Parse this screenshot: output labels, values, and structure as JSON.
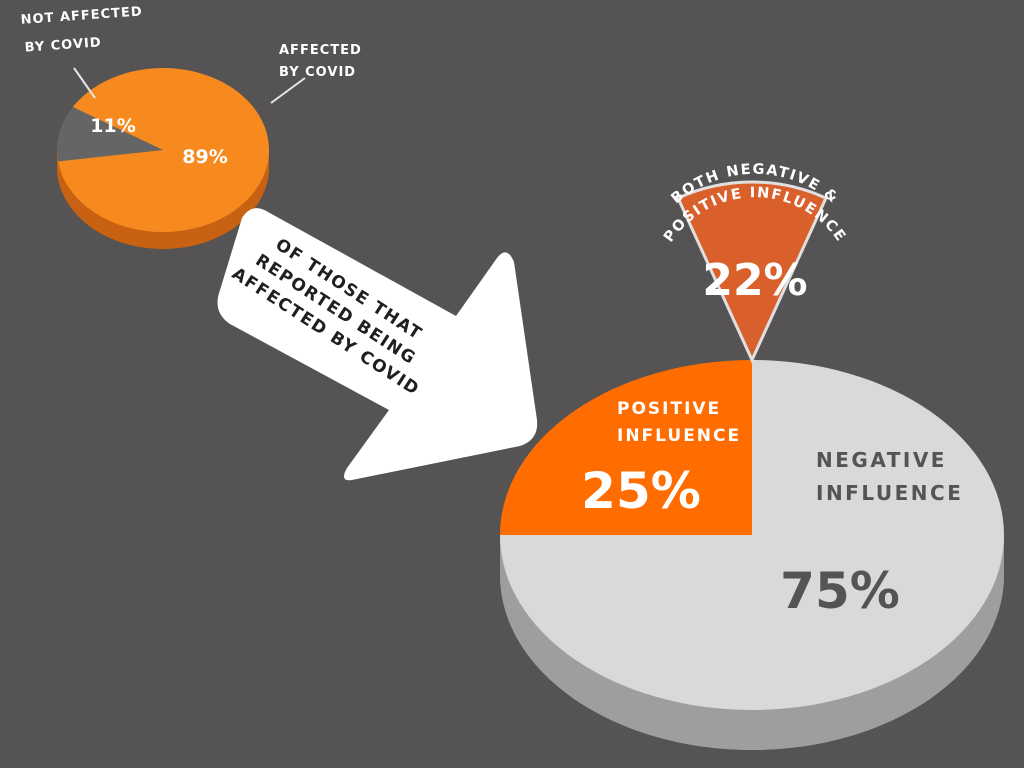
{
  "chart_data": [
    {
      "type": "pie",
      "slices": [
        {
          "label_lines": [
            "NOT AFFECTED",
            "BY COVID"
          ],
          "value": 11,
          "value_label": "11%",
          "color": "#666566"
        },
        {
          "label_lines": [
            "AFFECTED",
            "BY COVID"
          ],
          "value": 89,
          "value_label": "89%",
          "color": "#F68A1F"
        }
      ],
      "side_color": "#C86212"
    },
    {
      "type": "pie",
      "slices": [
        {
          "label_lines": [
            "POSITIVE",
            "INFLUENCE"
          ],
          "value": 25,
          "value_label": "25%",
          "color": "#FF6D00"
        },
        {
          "label_lines": [
            "NEGATIVE",
            "INFLUENCE"
          ],
          "value": 75,
          "value_label": "75%",
          "color": "#D9D9D9"
        }
      ],
      "side_color": "#9E9E9E",
      "callout": {
        "label_lines": [
          "BOTH NEGATIVE &",
          "POSITIVE INFLUENCE"
        ],
        "value": 22,
        "value_label": "22%",
        "color": "#D9602B",
        "border_color": "#E0E0E0"
      }
    }
  ],
  "arrow": {
    "text_lines": [
      "OF THOSE THAT",
      "REPORTED BEING",
      "AFFECTED BY COVID"
    ],
    "fill": "#FFFFFF",
    "text_color": "#1F1F1F"
  },
  "colors": {
    "background": "#555354",
    "label_light": "#FFFFFF",
    "label_dark": "#555354",
    "leader_line": "#E6E6E6"
  }
}
